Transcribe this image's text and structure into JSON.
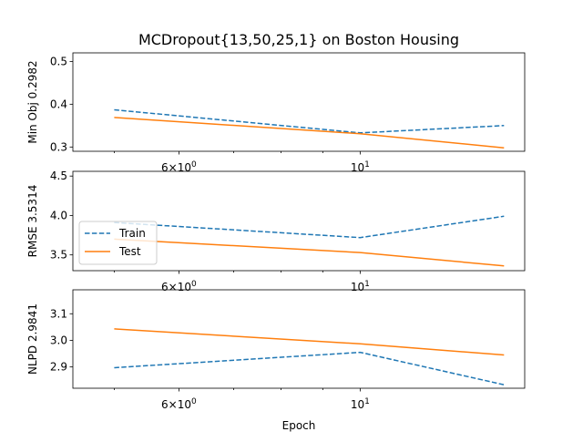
{
  "chart_data": {
    "type": "line",
    "title": "MCDropout{13,50,25,1} on Boston Housing",
    "xlabel": "Epoch",
    "xscale": "log",
    "x": [
      5,
      10,
      15
    ],
    "xticks": [
      {
        "value": 6,
        "base": "6×10",
        "exp": "0"
      },
      {
        "value": 10,
        "base": "10",
        "exp": "1"
      }
    ],
    "legend": {
      "placement": "in the middle subplot, left",
      "entries": [
        "Train",
        "Test"
      ]
    },
    "colors": {
      "Train": "#1f77b4",
      "Test": "#ff7f0e"
    },
    "subplots": [
      {
        "ylabel": "Min Obj 0.2982",
        "ylim": [
          0.29,
          0.52
        ],
        "yticks": [
          0.3,
          0.4,
          0.5
        ],
        "ytick_labels": [
          "0.3",
          "0.4",
          "0.5"
        ],
        "series": [
          {
            "name": "Train",
            "values": [
              0.387,
              0.333,
              0.35
            ]
          },
          {
            "name": "Test",
            "values": [
              0.369,
              0.331,
              0.298
            ]
          }
        ]
      },
      {
        "ylabel": "RMSE 3.5314",
        "ylim": [
          3.3,
          4.56
        ],
        "yticks": [
          3.5,
          4.0,
          4.5
        ],
        "ytick_labels": [
          "3.5",
          "4.0",
          "4.5"
        ],
        "series": [
          {
            "name": "Train",
            "values": [
              3.91,
              3.72,
              3.99
            ]
          },
          {
            "name": "Test",
            "values": [
              3.7,
              3.53,
              3.36
            ]
          }
        ]
      },
      {
        "ylabel": "NLPD 2.9841",
        "ylim": [
          2.82,
          3.19
        ],
        "yticks": [
          2.9,
          3.0,
          3.1
        ],
        "ytick_labels": [
          "2.9",
          "3.0",
          "3.1"
        ],
        "series": [
          {
            "name": "Train",
            "values": [
              2.897,
              2.955,
              2.833
            ]
          },
          {
            "name": "Test",
            "values": [
              3.043,
              2.987,
              2.945
            ]
          }
        ]
      }
    ]
  }
}
